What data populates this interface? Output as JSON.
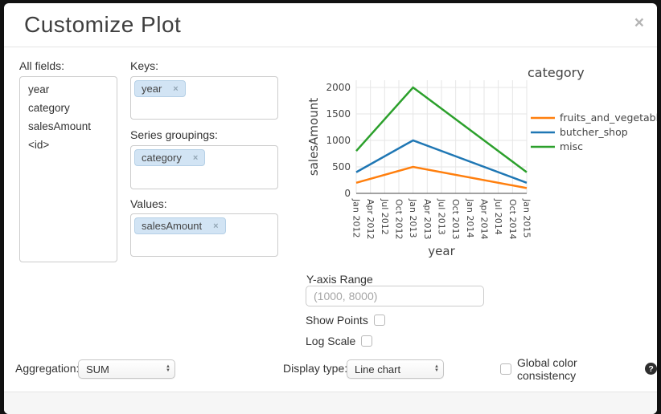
{
  "modal": {
    "title": "Customize Plot"
  },
  "icons": {
    "close": "×",
    "tag_remove": "×",
    "select_up": "▲",
    "select_down": "▼",
    "help": "?"
  },
  "fields_panel": {
    "label": "All fields:",
    "items": [
      "year",
      "category",
      "salesAmount",
      "<id>"
    ]
  },
  "selectors": {
    "keys": {
      "label": "Keys:",
      "tags": [
        "year"
      ]
    },
    "series_groupings": {
      "label": "Series groupings:",
      "tags": [
        "category"
      ]
    },
    "values": {
      "label": "Values:",
      "tags": [
        "salesAmount"
      ]
    }
  },
  "chart_data": {
    "type": "line",
    "xlabel": "year",
    "ylabel": "salesAmount",
    "legend_title": "category",
    "legend_position": "right",
    "grid": true,
    "ylim": [
      0,
      2000
    ],
    "y_ticks": [
      0,
      500,
      1000,
      1500,
      2000
    ],
    "x_ticks": [
      "Jan 2012",
      "Apr 2012",
      "Jul 2012",
      "Oct 2012",
      "Jan 2013",
      "Apr 2013",
      "Jul 2013",
      "Oct 2013",
      "Jan 2014",
      "Apr 2014",
      "Jul 2014",
      "Oct 2014",
      "Jan 2015"
    ],
    "x": [
      "Jan 2012",
      "Jan 2013",
      "Jan 2015"
    ],
    "x_tick_index": [
      0,
      4,
      12
    ],
    "series": [
      {
        "name": "fruits_and_vegetables",
        "color": "#ff7f0e",
        "values": [
          200,
          500,
          100
        ]
      },
      {
        "name": "butcher_shop",
        "color": "#1f77b4",
        "values": [
          400,
          1000,
          200
        ]
      },
      {
        "name": "misc",
        "color": "#2ca02c",
        "values": [
          800,
          2000,
          400
        ]
      }
    ]
  },
  "y_axis_range": {
    "label": "Y-axis Range",
    "placeholder": "(1000, 8000)"
  },
  "show_points": {
    "label": "Show Points",
    "checked": false
  },
  "log_scale": {
    "label": "Log Scale",
    "checked": false
  },
  "aggregation": {
    "label": "Aggregation:",
    "value": "SUM"
  },
  "display_type": {
    "label": "Display type:",
    "value": "Line chart"
  },
  "global_color": {
    "label": "Global color consistency",
    "checked": false
  }
}
